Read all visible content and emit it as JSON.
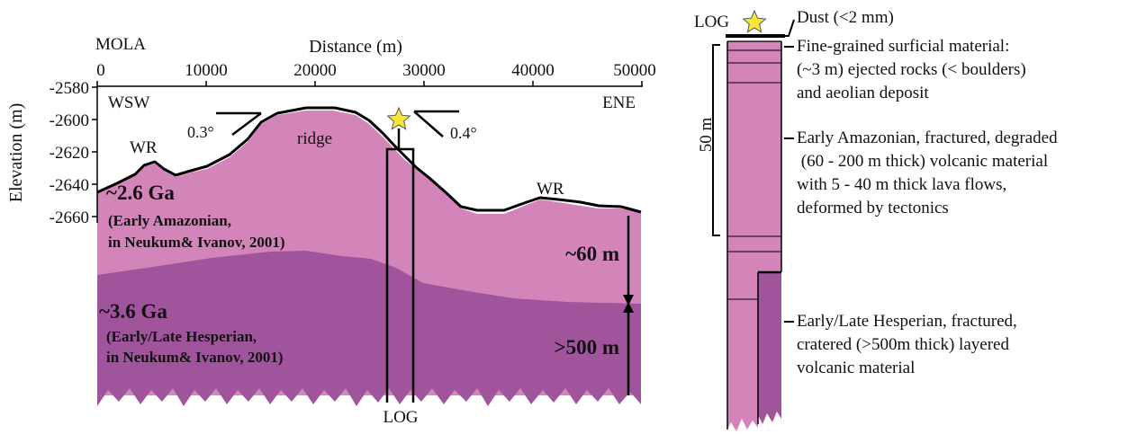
{
  "profile": {
    "source_label": "MOLA",
    "x_axis": {
      "title": "Distance (m)",
      "ticks": [
        "0",
        "10000",
        "20000",
        "30000",
        "40000",
        "50000"
      ]
    },
    "y_axis": {
      "title": "Elevation (m)",
      "ticks": [
        "-2580",
        "-2600",
        "-2620",
        "-2640",
        "-2660"
      ]
    },
    "direction_left": "WSW",
    "direction_right": "ENE",
    "slope_left": "0.3°",
    "slope_right": "0.4°",
    "ridge_label": "ridge",
    "wr_left": "WR",
    "wr_right": "WR",
    "log_label": "LOG",
    "upper_unit": {
      "age": "~2.6 Ga",
      "line1": "(Early Amazonian,",
      "line2": "in Neukum& Ivanov, 2001)",
      "color": "#d384b8"
    },
    "lower_unit": {
      "age": "~3.6 Ga",
      "line1": "(Early/Late Hesperian,",
      "line2": "in Neukum& Ivanov, 2001)",
      "color": "#a0549c"
    },
    "thickness_upper": "~60 m",
    "thickness_lower": ">500 m"
  },
  "log_column": {
    "title": "LOG",
    "scale_label": "50 m",
    "dust": "Dust (<2 mm)",
    "surficial": [
      "Fine-grained surficial material:",
      "(~3 m) ejected rocks (< boulders)",
      "and aeolian deposit"
    ],
    "amazonian": [
      "Early Amazonian, fractured, degraded",
      " (60 - 200 m thick) volcanic material",
      "with 5 - 40 m thick lava flows,",
      "deformed by tectonics"
    ],
    "hesperian": [
      "Early/Late Hesperian, fractured,",
      "cratered (>500m thick) layered",
      "volcanic material"
    ]
  }
}
